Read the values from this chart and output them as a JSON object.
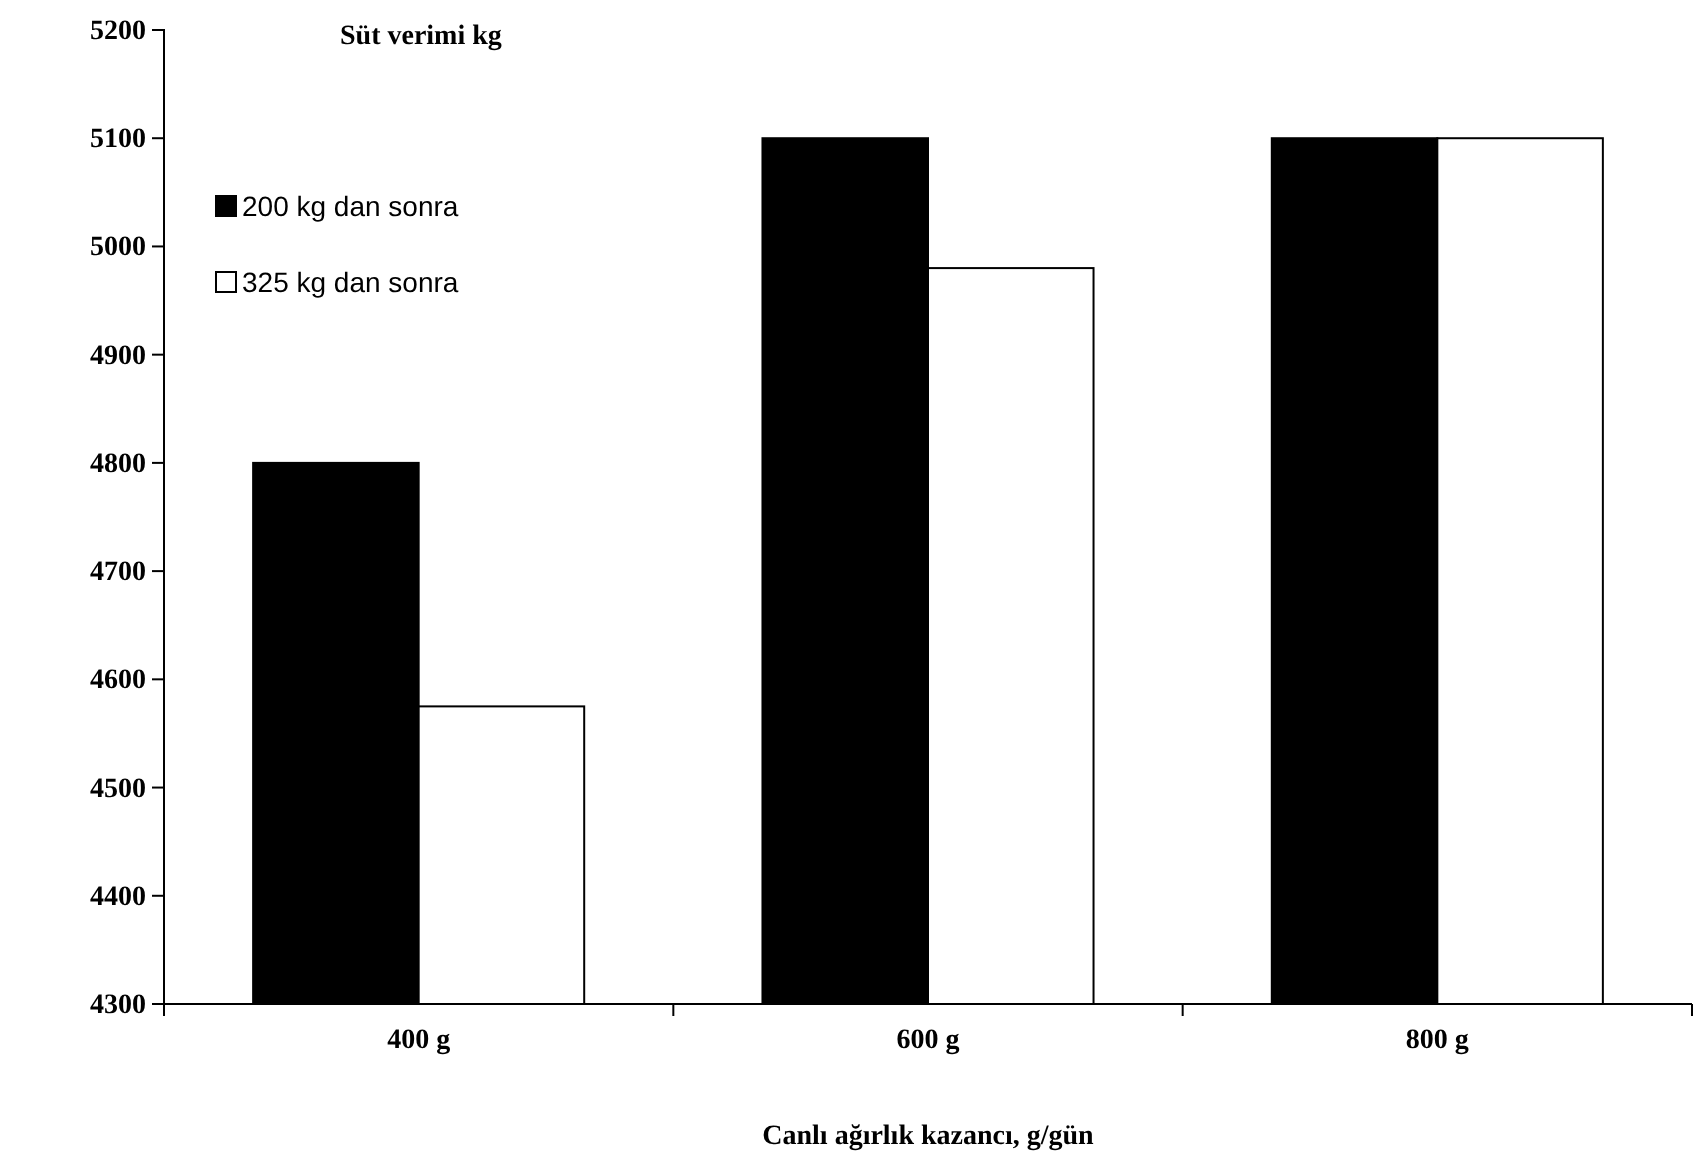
{
  "chart_data": {
    "type": "bar",
    "title": "Süt verimi kg",
    "xlabel": "Canlı ağırlık kazancı, g/gün",
    "categories": [
      "400 g",
      "600 g",
      "800 g"
    ],
    "series": [
      {
        "name": "200 kg dan sonra",
        "color": "#000000",
        "values": [
          4800,
          5100,
          5100
        ]
      },
      {
        "name": "325 kg dan sonra",
        "color": "#ffffff",
        "values": [
          4575,
          4980,
          5100
        ]
      }
    ],
    "ylim": [
      4300,
      5200
    ],
    "yticks": [
      4300,
      4400,
      4500,
      4600,
      4700,
      4800,
      4900,
      5000,
      5100,
      5200
    ],
    "grid": false,
    "legend": "top left"
  }
}
